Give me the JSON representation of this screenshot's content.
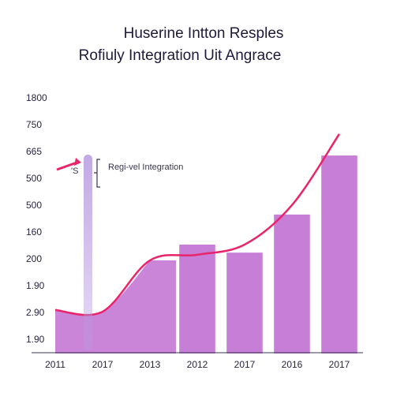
{
  "chart_data": {
    "type": "combo",
    "title": "Huserine Intton Resples",
    "subtitle": "Rofiuly Integration Uit Angrace",
    "annotation": "Regi-vel Integration",
    "annotation_marker": "'S",
    "categories": [
      "2011",
      "2017",
      "2013",
      "2012",
      "2017",
      "2016",
      "2017"
    ],
    "series": [
      {
        "type": "area",
        "color": "#c77ed6",
        "values": [
          1.12,
          1.06,
          2.97,
          null,
          null,
          null,
          null
        ]
      },
      {
        "type": "bar",
        "color": "#c77ed6",
        "values": [
          null,
          null,
          null,
          3.56,
          3.26,
          4.68,
          6.88
        ]
      },
      {
        "type": "line",
        "color": "#e8246a",
        "values": [
          1.12,
          1.06,
          2.97,
          3.18,
          3.56,
          5.03,
          7.68
        ]
      }
    ],
    "ylim": [
      -0.5,
      9.5
    ],
    "yticks": [
      {
        "value": 0,
        "label": "1.90"
      },
      {
        "value": 1,
        "label": "2.90"
      },
      {
        "value": 2,
        "label": "1.90"
      },
      {
        "value": 3,
        "label": "200"
      },
      {
        "value": 4,
        "label": "160"
      },
      {
        "value": 5,
        "label": "500"
      },
      {
        "value": 6,
        "label": "500"
      },
      {
        "value": 7,
        "label": "665"
      },
      {
        "value": 8,
        "label": "750"
      },
      {
        "value": 9,
        "label": "1800"
      }
    ]
  }
}
